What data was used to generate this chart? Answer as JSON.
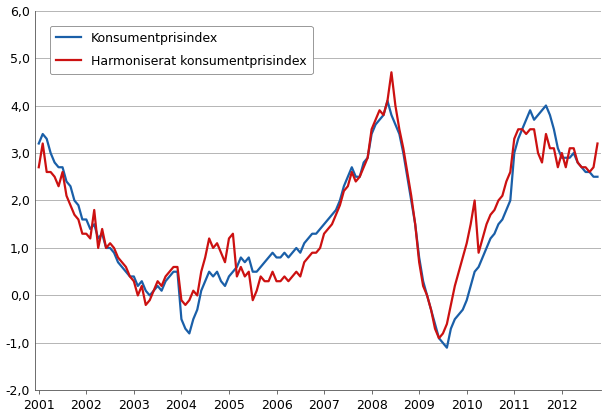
{
  "title": "",
  "xlabel": "",
  "ylabel": "",
  "ylim": [
    -2.0,
    6.0
  ],
  "yticks": [
    -2.0,
    -1.0,
    0.0,
    1.0,
    2.0,
    3.0,
    4.0,
    5.0,
    6.0
  ],
  "ytick_labels": [
    "-2,0",
    "-1,0",
    "0,0",
    "1,0",
    "2,0",
    "3,0",
    "4,0",
    "5,0",
    "6,0"
  ],
  "xtick_labels": [
    "2001",
    "2002",
    "2003",
    "2004",
    "2005",
    "2006",
    "2007",
    "2008",
    "2009",
    "2010",
    "2011",
    "2012"
  ],
  "line1_color": "#1a5fa8",
  "line2_color": "#cc1111",
  "line1_label": "Konsumentprisindex",
  "line2_label": "Harmoniserat konsumentprisindex",
  "line_width": 1.6,
  "kpi": [
    3.2,
    3.4,
    3.3,
    3.0,
    2.8,
    2.7,
    2.7,
    2.4,
    2.3,
    2.0,
    1.9,
    1.6,
    1.6,
    1.4,
    1.5,
    1.2,
    1.3,
    1.0,
    1.0,
    0.9,
    0.7,
    0.6,
    0.5,
    0.4,
    0.4,
    0.2,
    0.3,
    0.1,
    0.0,
    0.1,
    0.2,
    0.1,
    0.3,
    0.4,
    0.5,
    0.5,
    -0.5,
    -0.7,
    -0.8,
    -0.5,
    -0.3,
    0.1,
    0.3,
    0.5,
    0.4,
    0.5,
    0.3,
    0.2,
    0.4,
    0.5,
    0.6,
    0.8,
    0.7,
    0.8,
    0.5,
    0.5,
    0.6,
    0.7,
    0.8,
    0.9,
    0.8,
    0.8,
    0.9,
    0.8,
    0.9,
    1.0,
    0.9,
    1.1,
    1.2,
    1.3,
    1.3,
    1.4,
    1.5,
    1.6,
    1.7,
    1.8,
    2.0,
    2.3,
    2.5,
    2.7,
    2.5,
    2.5,
    2.8,
    2.9,
    3.4,
    3.6,
    3.7,
    3.8,
    4.1,
    3.8,
    3.6,
    3.4,
    3.0,
    2.5,
    2.0,
    1.5,
    0.8,
    0.3,
    0.0,
    -0.3,
    -0.6,
    -0.9,
    -1.0,
    -1.1,
    -0.7,
    -0.5,
    -0.4,
    -0.3,
    -0.1,
    0.2,
    0.5,
    0.6,
    0.8,
    1.0,
    1.2,
    1.3,
    1.5,
    1.6,
    1.8,
    2.0,
    3.0,
    3.3,
    3.5,
    3.7,
    3.9,
    3.7,
    3.8,
    3.9,
    4.0,
    3.8,
    3.5,
    3.1,
    2.9,
    2.9,
    2.9,
    3.0,
    2.8,
    2.7,
    2.6,
    2.6,
    2.5,
    2.5
  ],
  "hicp": [
    2.7,
    3.2,
    2.6,
    2.6,
    2.5,
    2.3,
    2.6,
    2.1,
    1.9,
    1.7,
    1.6,
    1.3,
    1.3,
    1.2,
    1.8,
    1.0,
    1.4,
    1.0,
    1.1,
    1.0,
    0.8,
    0.7,
    0.6,
    0.4,
    0.3,
    0.0,
    0.2,
    -0.2,
    -0.1,
    0.1,
    0.3,
    0.2,
    0.4,
    0.5,
    0.6,
    0.6,
    -0.1,
    -0.2,
    -0.1,
    0.1,
    0.0,
    0.5,
    0.8,
    1.2,
    1.0,
    1.1,
    0.9,
    0.7,
    1.2,
    1.3,
    0.4,
    0.6,
    0.4,
    0.5,
    -0.1,
    0.1,
    0.4,
    0.3,
    0.3,
    0.5,
    0.3,
    0.3,
    0.4,
    0.3,
    0.4,
    0.5,
    0.4,
    0.7,
    0.8,
    0.9,
    0.9,
    1.0,
    1.3,
    1.4,
    1.5,
    1.7,
    1.9,
    2.2,
    2.3,
    2.6,
    2.4,
    2.5,
    2.7,
    2.9,
    3.5,
    3.7,
    3.9,
    3.8,
    4.1,
    4.7,
    4.0,
    3.5,
    3.1,
    2.6,
    2.1,
    1.5,
    0.7,
    0.2,
    0.0,
    -0.3,
    -0.7,
    -0.9,
    -0.8,
    -0.6,
    -0.2,
    0.2,
    0.5,
    0.8,
    1.1,
    1.5,
    2.0,
    0.9,
    1.2,
    1.5,
    1.7,
    1.8,
    2.0,
    2.1,
    2.4,
    2.6,
    3.3,
    3.5,
    3.5,
    3.4,
    3.5,
    3.5,
    3.0,
    2.8,
    3.4,
    3.1,
    3.1,
    2.7,
    3.0,
    2.7,
    3.1,
    3.1,
    2.8,
    2.7,
    2.7,
    2.6,
    2.7,
    3.2
  ],
  "n_points": 142,
  "background_color": "#ffffff",
  "grid_color": "#aaaaaa",
  "legend_fontsize": 9,
  "tick_fontsize": 9
}
